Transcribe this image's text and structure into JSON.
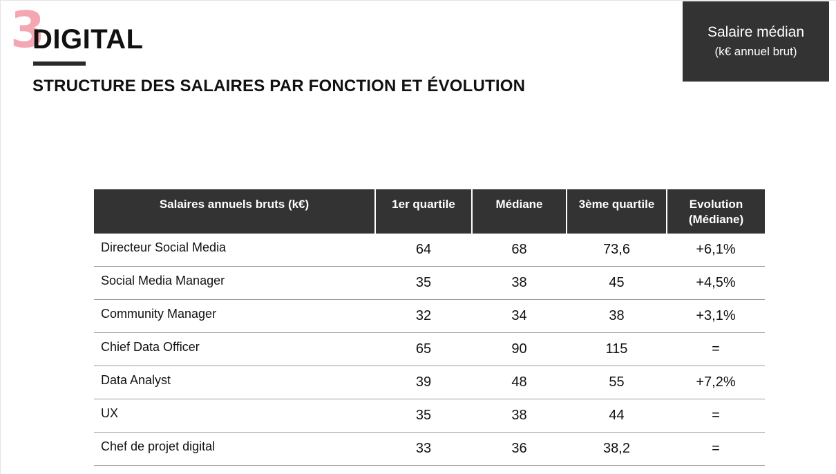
{
  "section": {
    "number": "3",
    "title": "DIGITAL"
  },
  "subtitle": "STRUCTURE DES SALAIRES PAR FONCTION ET ÉVOLUTION",
  "badge": {
    "title": "Salaire médian",
    "subtitle": "(k€ annuel brut)"
  },
  "table": {
    "headers": {
      "label": "Salaires annuels bruts (k€)",
      "q1": "1er quartile",
      "median": "Médiane",
      "q3": "3ème quartile",
      "evolution_line1": "Evolution",
      "evolution_line2": "(Médiane)"
    },
    "rows": [
      {
        "label": "Directeur Social Media",
        "q1": "64",
        "median": "68",
        "q3": "73,6",
        "evolution": "+6,1%"
      },
      {
        "label": "Social Media Manager",
        "q1": "35",
        "median": "38",
        "q3": "45",
        "evolution": "+4,5%"
      },
      {
        "label": "Community Manager",
        "q1": "32",
        "median": "34",
        "q3": "38",
        "evolution": "+3,1%"
      },
      {
        "label": "Chief Data Officer",
        "q1": "65",
        "median": "90",
        "q3": "115",
        "evolution": "="
      },
      {
        "label": "Data Analyst",
        "q1": "39",
        "median": "48",
        "q3": "55",
        "evolution": "+7,2%"
      },
      {
        "label": "UX",
        "q1": "35",
        "median": "38",
        "q3": "44",
        "evolution": "="
      },
      {
        "label": "Chef de projet digital",
        "q1": "33",
        "median": "36",
        "q3": "38,2",
        "evolution": "="
      }
    ]
  }
}
